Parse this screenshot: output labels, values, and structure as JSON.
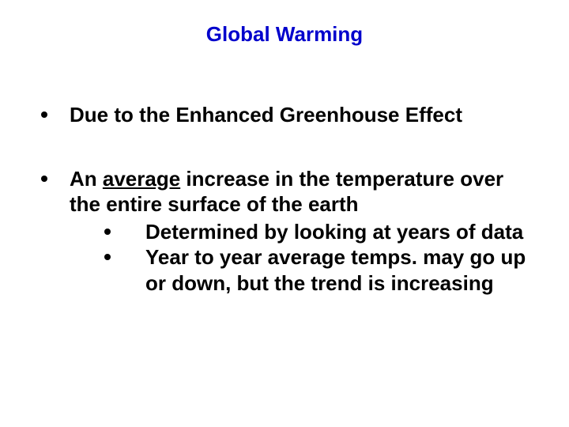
{
  "title": "Global Warming",
  "title_color": "#0000cc",
  "text_color": "#000000",
  "background_color": "#ffffff",
  "font_family": "Arial, Helvetica, sans-serif",
  "title_fontsize": 26,
  "body_fontsize": 26,
  "font_weight": "bold",
  "bullets": [
    {
      "text": "Due to the Enhanced Greenhouse Effect"
    },
    {
      "prefix": "An ",
      "underlined": "average",
      "suffix": " increase in the temperature over the entire surface of the earth",
      "sub": [
        "Determined by looking at years of data",
        "Year to year average temps. may go up or down, but the trend is increasing"
      ]
    }
  ]
}
